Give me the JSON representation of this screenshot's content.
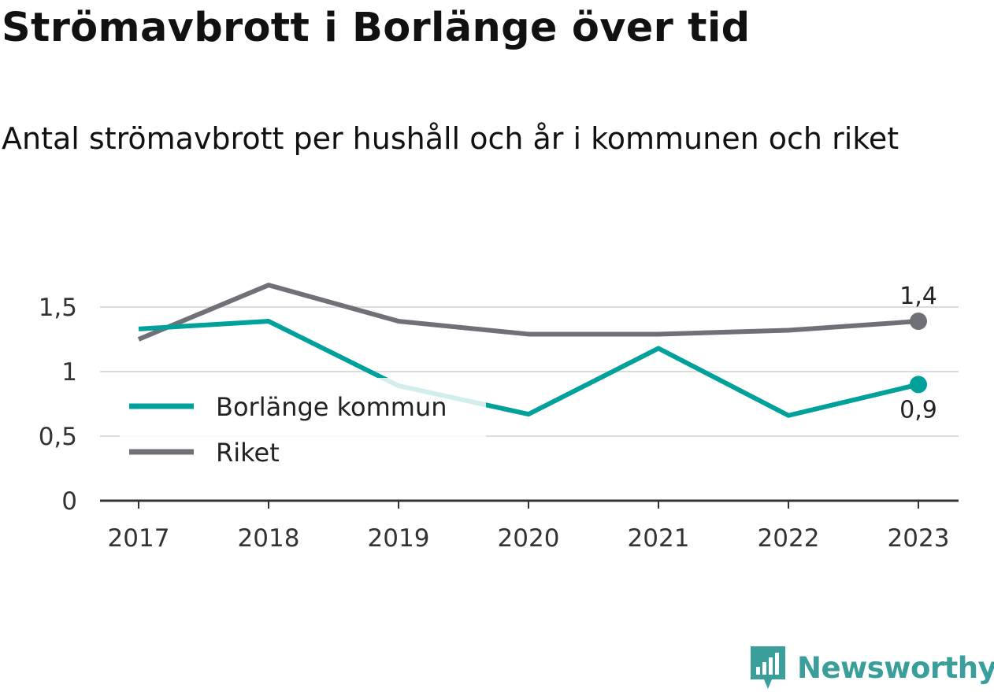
{
  "header": {
    "title": "Strömavbrott i Borlänge över tid",
    "subtitle": "Antal strömavbrott per hushåll och år i kommunen och riket"
  },
  "chart_data": {
    "type": "line",
    "title": "Strömavbrott i Borlänge över tid",
    "subtitle": "Antal strömavbrott per hushåll och år i kommunen och riket",
    "xlabel": "",
    "ylabel": "",
    "x": [
      "2017",
      "2018",
      "2019",
      "2020",
      "2021",
      "2022",
      "2023"
    ],
    "ylim": [
      0,
      1.65
    ],
    "yticks": [
      0,
      0.5,
      1,
      1.5
    ],
    "ytick_labels": [
      "0",
      "0,5",
      "1",
      "1,5"
    ],
    "grid": true,
    "legend_position": "left",
    "series": [
      {
        "name": "Borlänge kommun",
        "color": "#00a19a",
        "values": [
          1.33,
          1.39,
          0.89,
          0.67,
          1.18,
          0.66,
          0.9
        ],
        "end_label": "0,9"
      },
      {
        "name": "Riket",
        "color": "#707078",
        "values": [
          1.25,
          1.67,
          1.39,
          1.29,
          1.29,
          1.32,
          1.39
        ],
        "end_label": "1,4"
      }
    ]
  },
  "brand": {
    "name": "Newsworthy",
    "icon": "newsworthy-logo-icon",
    "color": "#3a9e9a"
  }
}
